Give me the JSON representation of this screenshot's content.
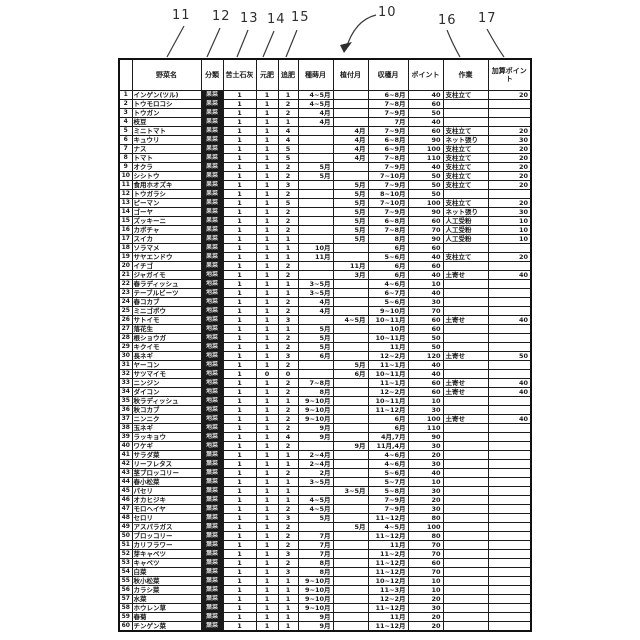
{
  "figure": {
    "refs": {
      "r11": "11",
      "r12": "12",
      "r13": "13",
      "r14": "14",
      "r15": "15",
      "r10": "10",
      "r16": "16",
      "r17": "17"
    }
  },
  "table": {
    "headers": [
      "",
      "野菜名",
      "分類",
      "苦土石灰",
      "元肥",
      "追肥",
      "種蒔月",
      "植付月",
      "収穫月",
      "ポイント",
      "作業",
      "加算ポイント"
    ],
    "rows": [
      [
        "1",
        "インゲン(ツル)",
        "果菜",
        "1",
        "1",
        "1",
        "4~5月",
        "",
        "6~8月",
        "40",
        "支柱立て",
        "20"
      ],
      [
        "2",
        "トウモロコシ",
        "果菜",
        "1",
        "1",
        "2",
        "4~5月",
        "",
        "7~8月",
        "60",
        "",
        ""
      ],
      [
        "3",
        "トウガン",
        "果菜",
        "1",
        "1",
        "2",
        "4月",
        "",
        "7~9月",
        "50",
        "",
        ""
      ],
      [
        "4",
        "枝豆",
        "果菜",
        "1",
        "1",
        "1",
        "4月",
        "",
        "7月",
        "40",
        "",
        ""
      ],
      [
        "5",
        "ミニトマト",
        "果菜",
        "1",
        "1",
        "4",
        "",
        "4月",
        "7~9月",
        "60",
        "支柱立て",
        "20"
      ],
      [
        "6",
        "キュウリ",
        "果菜",
        "1",
        "1",
        "4",
        "",
        "4月",
        "6~8月",
        "90",
        "ネット張り",
        "30"
      ],
      [
        "7",
        "ナス",
        "果菜",
        "1",
        "1",
        "5",
        "",
        "4月",
        "6~9月",
        "100",
        "支柱立て",
        "20"
      ],
      [
        "8",
        "トマト",
        "果菜",
        "1",
        "1",
        "5",
        "",
        "4月",
        "7~8月",
        "110",
        "支柱立て",
        "20"
      ],
      [
        "9",
        "オクラ",
        "果菜",
        "1",
        "1",
        "2",
        "5月",
        "",
        "7~9月",
        "40",
        "支柱立て",
        "20"
      ],
      [
        "10",
        "シシトウ",
        "果菜",
        "1",
        "1",
        "2",
        "5月",
        "",
        "7~10月",
        "50",
        "支柱立て",
        "20"
      ],
      [
        "11",
        "食用ホオズキ",
        "果菜",
        "1",
        "1",
        "3",
        "",
        "5月",
        "7~9月",
        "50",
        "支柱立て",
        "20"
      ],
      [
        "12",
        "トウガラシ",
        "果菜",
        "1",
        "1",
        "2",
        "",
        "5月",
        "8~10月",
        "50",
        "",
        ""
      ],
      [
        "13",
        "ピーマン",
        "果菜",
        "1",
        "1",
        "5",
        "",
        "5月",
        "7~10月",
        "100",
        "支柱立て",
        "20"
      ],
      [
        "14",
        "ゴーヤ",
        "果菜",
        "1",
        "1",
        "2",
        "",
        "5月",
        "7~9月",
        "90",
        "ネット張り",
        "30"
      ],
      [
        "15",
        "ズッキーニ",
        "果菜",
        "1",
        "1",
        "2",
        "",
        "5月",
        "6~8月",
        "60",
        "人工受粉",
        "10"
      ],
      [
        "16",
        "カボチャ",
        "果菜",
        "1",
        "1",
        "2",
        "",
        "5月",
        "7~8月",
        "70",
        "人工受粉",
        "10"
      ],
      [
        "17",
        "スイカ",
        "果菜",
        "1",
        "1",
        "1",
        "",
        "5月",
        "8月",
        "90",
        "人工受粉",
        "10"
      ],
      [
        "18",
        "ソラマメ",
        "果菜",
        "1",
        "1",
        "1",
        "10月",
        "",
        "6月",
        "60",
        "",
        ""
      ],
      [
        "19",
        "サヤエンドウ",
        "果菜",
        "1",
        "1",
        "1",
        "11月",
        "",
        "5~6月",
        "40",
        "支柱立て",
        "20"
      ],
      [
        "20",
        "イチゴ",
        "果菜",
        "1",
        "1",
        "2",
        "",
        "11月",
        "6月",
        "60",
        "",
        ""
      ],
      [
        "21",
        "ジャガイモ",
        "地菜",
        "1",
        "1",
        "2",
        "",
        "3月",
        "6月",
        "40",
        "土寄せ",
        "40"
      ],
      [
        "22",
        "春ラディッシュ",
        "地菜",
        "1",
        "1",
        "1",
        "3~5月",
        "",
        "4~6月",
        "10",
        "",
        ""
      ],
      [
        "23",
        "テーブルビーツ",
        "地菜",
        "1",
        "1",
        "1",
        "3~5月",
        "",
        "6~7月",
        "40",
        "",
        ""
      ],
      [
        "24",
        "春コカブ",
        "地菜",
        "1",
        "1",
        "2",
        "4月",
        "",
        "5~6月",
        "30",
        "",
        ""
      ],
      [
        "25",
        "ミニゴボウ",
        "地菜",
        "1",
        "1",
        "2",
        "4月",
        "",
        "9~10月",
        "70",
        "",
        ""
      ],
      [
        "26",
        "サトイモ",
        "地菜",
        "1",
        "1",
        "3",
        "",
        "4~5月",
        "10~11月",
        "60",
        "土寄せ",
        "40"
      ],
      [
        "27",
        "落花生",
        "地菜",
        "1",
        "1",
        "1",
        "5月",
        "",
        "10月",
        "60",
        "",
        ""
      ],
      [
        "28",
        "根ショウガ",
        "地菜",
        "1",
        "1",
        "2",
        "5月",
        "",
        "10~11月",
        "50",
        "",
        ""
      ],
      [
        "29",
        "キクイモ",
        "地菜",
        "1",
        "1",
        "2",
        "5月",
        "",
        "11月",
        "50",
        "",
        ""
      ],
      [
        "30",
        "長ネギ",
        "地菜",
        "1",
        "1",
        "3",
        "6月",
        "",
        "12~2月",
        "120",
        "土寄せ",
        "50"
      ],
      [
        "31",
        "ヤーコン",
        "地菜",
        "1",
        "1",
        "2",
        "",
        "5月",
        "11~1月",
        "40",
        "",
        ""
      ],
      [
        "32",
        "サツマイモ",
        "地菜",
        "1",
        "0",
        "0",
        "",
        "6月",
        "10~11月",
        "40",
        "",
        ""
      ],
      [
        "33",
        "ニンジン",
        "地菜",
        "1",
        "1",
        "2",
        "7~8月",
        "",
        "11~1月",
        "60",
        "土寄せ",
        "40"
      ],
      [
        "34",
        "ダイコン",
        "地菜",
        "1",
        "1",
        "2",
        "8月",
        "",
        "12~2月",
        "60",
        "土寄せ",
        "40"
      ],
      [
        "35",
        "秋ラディッシュ",
        "地菜",
        "1",
        "1",
        "1",
        "9~10月",
        "",
        "10~11月",
        "10",
        "",
        ""
      ],
      [
        "36",
        "秋コカブ",
        "地菜",
        "1",
        "1",
        "2",
        "9~10月",
        "",
        "11~12月",
        "30",
        "",
        ""
      ],
      [
        "37",
        "ニンニク",
        "地菜",
        "1",
        "1",
        "2",
        "9~10月",
        "",
        "6月",
        "100",
        "土寄せ",
        "40"
      ],
      [
        "38",
        "玉ネギ",
        "地菜",
        "1",
        "1",
        "2",
        "9月",
        "",
        "6月",
        "110",
        "",
        ""
      ],
      [
        "39",
        "ラッキョウ",
        "地菜",
        "1",
        "1",
        "4",
        "9月",
        "",
        "4月,7月",
        "90",
        "",
        ""
      ],
      [
        "40",
        "ワケギ",
        "地菜",
        "1",
        "1",
        "2",
        "",
        "9月",
        "11月,4月",
        "30",
        "",
        ""
      ],
      [
        "41",
        "サラダ菜",
        "葉菜",
        "1",
        "1",
        "1",
        "2~4月",
        "",
        "4~6月",
        "20",
        "",
        ""
      ],
      [
        "42",
        "リーフレタス",
        "葉菜",
        "1",
        "1",
        "1",
        "2~4月",
        "",
        "4~6月",
        "30",
        "",
        ""
      ],
      [
        "43",
        "茎ブロッコリー",
        "葉菜",
        "1",
        "1",
        "2",
        "2月",
        "",
        "5~6月",
        "40",
        "",
        ""
      ],
      [
        "44",
        "春小松菜",
        "葉菜",
        "1",
        "1",
        "1",
        "3~5月",
        "",
        "5~7月",
        "10",
        "",
        ""
      ],
      [
        "45",
        "パセリ",
        "葉菜",
        "1",
        "1",
        "1",
        "",
        "3~5月",
        "5~8月",
        "30",
        "",
        ""
      ],
      [
        "46",
        "オカヒジキ",
        "葉菜",
        "1",
        "1",
        "1",
        "4~5月",
        "",
        "7~9月",
        "20",
        "",
        ""
      ],
      [
        "47",
        "モロヘイヤ",
        "葉菜",
        "1",
        "1",
        "2",
        "4~5月",
        "",
        "7~9月",
        "30",
        "",
        ""
      ],
      [
        "48",
        "セロリ",
        "葉菜",
        "1",
        "1",
        "3",
        "5月",
        "",
        "11~12月",
        "80",
        "",
        ""
      ],
      [
        "49",
        "アスパラガス",
        "葉菜",
        "1",
        "1",
        "2",
        "",
        "5月",
        "4~5月",
        "100",
        "",
        ""
      ],
      [
        "50",
        "ブロッコリー",
        "葉菜",
        "1",
        "1",
        "2",
        "7月",
        "",
        "11~12月",
        "80",
        "",
        ""
      ],
      [
        "51",
        "カリフラワー",
        "葉菜",
        "1",
        "1",
        "2",
        "7月",
        "",
        "11月",
        "70",
        "",
        ""
      ],
      [
        "52",
        "芽キャベツ",
        "葉菜",
        "1",
        "1",
        "3",
        "7月",
        "",
        "11~2月",
        "70",
        "",
        ""
      ],
      [
        "53",
        "キャベツ",
        "葉菜",
        "1",
        "1",
        "2",
        "8月",
        "",
        "11~12月",
        "60",
        "",
        ""
      ],
      [
        "54",
        "白菜",
        "葉菜",
        "1",
        "1",
        "3",
        "8月",
        "",
        "11~12月",
        "70",
        "",
        ""
      ],
      [
        "55",
        "秋小松菜",
        "葉菜",
        "1",
        "1",
        "1",
        "9~10月",
        "",
        "10~12月",
        "10",
        "",
        ""
      ],
      [
        "56",
        "カラシ菜",
        "葉菜",
        "1",
        "1",
        "1",
        "9~10月",
        "",
        "11~3月",
        "10",
        "",
        ""
      ],
      [
        "57",
        "水菜",
        "葉菜",
        "1",
        "1",
        "1",
        "9~10月",
        "",
        "12~2月",
        "20",
        "",
        ""
      ],
      [
        "58",
        "ホウレン草",
        "葉菜",
        "1",
        "1",
        "1",
        "9~10月",
        "",
        "11~12月",
        "30",
        "",
        ""
      ],
      [
        "59",
        "春菊",
        "葉菜",
        "1",
        "1",
        "1",
        "9月",
        "",
        "11月",
        "20",
        "",
        ""
      ],
      [
        "60",
        "チンゲン菜",
        "葉菜",
        "1",
        "1",
        "1",
        "9月",
        "",
        "11~12月",
        "20",
        "",
        ""
      ]
    ]
  }
}
